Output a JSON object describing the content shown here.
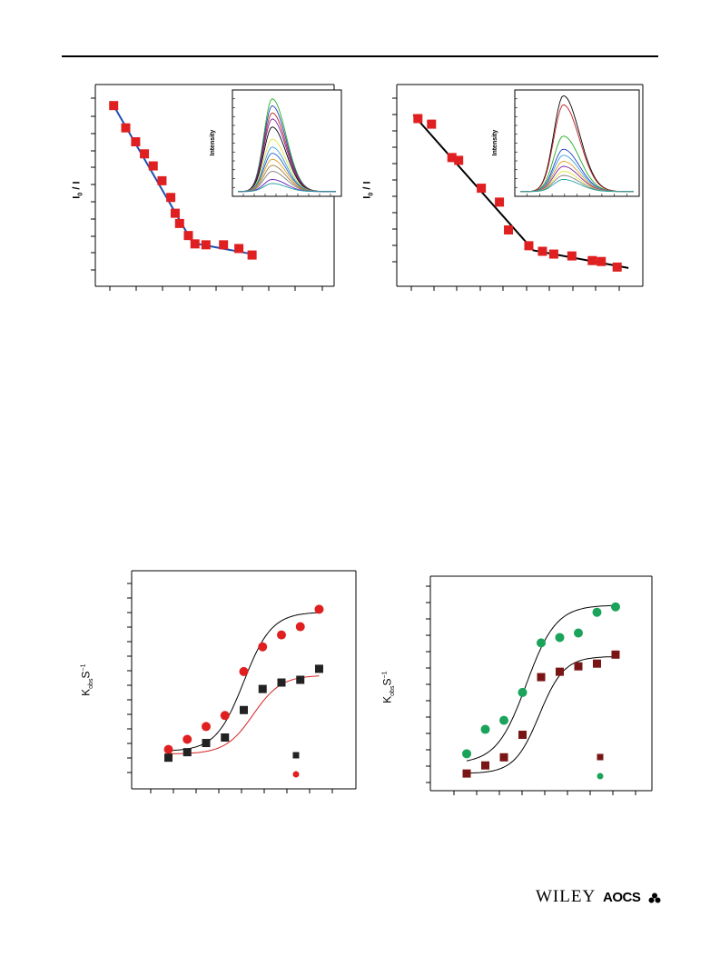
{
  "footer": {
    "publisher": "WILEY",
    "society": "AOCS"
  },
  "colors": {
    "red_marker": "#e02020",
    "blue_line": "#1f4fb0",
    "black": "#000000",
    "dark_red_marker": "#7a1515",
    "green_marker": "#1aa35a",
    "red_line": "#d42020"
  },
  "panels": [
    {
      "ylabel_main": "I",
      "ylabel_sub": "0",
      "ylabel_rest": " / I",
      "inset_ylabel": "Intensity"
    },
    {
      "ylabel_main": "I",
      "ylabel_sub": "0",
      "ylabel_rest": " / I",
      "inset_ylabel": "Intensity"
    },
    {
      "ylabel_main": "K",
      "ylabel_sub": "obs",
      "ylabel_rest": "S",
      "ylabel_sup": "−1"
    },
    {
      "ylabel_main": "K",
      "ylabel_sub": "obs",
      "ylabel_rest": "S",
      "ylabel_sup": "−1"
    }
  ],
  "chart_data": [
    {
      "type": "scatter",
      "xlabel": "",
      "ylabel": "I0 / I",
      "xlim": [
        0,
        10
      ],
      "ylim": [
        0,
        10
      ],
      "series": [
        {
          "marker": "square",
          "color": "#e02020",
          "x": [
            0.4,
            0.95,
            1.4,
            1.8,
            2.2,
            2.6,
            3.0,
            3.2,
            3.4,
            3.8,
            4.1,
            4.6,
            5.4,
            6.1,
            6.7
          ],
          "y": [
            9.3,
            8.1,
            7.35,
            6.7,
            6.05,
            5.25,
            4.35,
            3.5,
            2.95,
            2.3,
            1.85,
            1.8,
            1.8,
            1.6,
            1.25
          ]
        }
      ],
      "fit_lines": [
        {
          "color": "#1f4fb0",
          "points": [
            [
              0.3,
              9.5
            ],
            [
              4.0,
              1.9
            ],
            [
              6.7,
              1.3
            ]
          ]
        }
      ],
      "inset": {
        "type": "line",
        "ylabel": "Intensity",
        "peak_x": 0.35,
        "curves": [
          {
            "color": "#20b020",
            "peak": 0.92
          },
          {
            "color": "#2040c0",
            "peak": 0.85
          },
          {
            "color": "#c02020",
            "peak": 0.78
          },
          {
            "color": "#8020a0",
            "peak": 0.72
          },
          {
            "color": "#000000",
            "peak": 0.64
          },
          {
            "color": "#e0e040",
            "peak": 0.52
          },
          {
            "color": "#40a0e0",
            "peak": 0.44
          },
          {
            "color": "#2060c0",
            "peak": 0.38
          },
          {
            "color": "#e0a020",
            "peak": 0.32
          },
          {
            "color": "#a08040",
            "peak": 0.26
          },
          {
            "color": "#808080",
            "peak": 0.2
          },
          {
            "color": "#6020c0",
            "peak": 0.12
          },
          {
            "color": "#20a0a0",
            "peak": 0.08
          }
        ]
      }
    },
    {
      "type": "scatter",
      "xlabel": "",
      "ylabel": "I0 / I",
      "xlim": [
        0,
        10
      ],
      "ylim": [
        0,
        10
      ],
      "series": [
        {
          "marker": "square",
          "color": "#e02020",
          "x": [
            0.5,
            1.1,
            2.0,
            2.3,
            3.3,
            4.1,
            4.5,
            5.4,
            6.0,
            6.5,
            7.3,
            8.2,
            8.6,
            9.3
          ],
          "y": [
            8.6,
            8.3,
            6.5,
            6.35,
            4.85,
            4.1,
            2.6,
            1.75,
            1.45,
            1.3,
            1.2,
            0.95,
            0.9,
            0.6
          ]
        }
      ],
      "fit_lines": [
        {
          "color": "#000000",
          "points": [
            [
              0.3,
              8.8
            ],
            [
              5.6,
              1.5
            ],
            [
              9.8,
              0.55
            ]
          ]
        }
      ],
      "inset": {
        "type": "line",
        "ylabel": "Intensity",
        "peak_x": 0.38,
        "curves": [
          {
            "color": "#000000",
            "peak": 0.95
          },
          {
            "color": "#c02020",
            "peak": 0.86
          },
          {
            "color": "#20b020",
            "peak": 0.55
          },
          {
            "color": "#2040c0",
            "peak": 0.42
          },
          {
            "color": "#40a0e0",
            "peak": 0.36
          },
          {
            "color": "#e0a020",
            "peak": 0.3
          },
          {
            "color": "#8020a0",
            "peak": 0.25
          },
          {
            "color": "#e0e040",
            "peak": 0.2
          },
          {
            "color": "#808080",
            "peak": 0.16
          },
          {
            "color": "#20a0a0",
            "peak": 0.12
          }
        ]
      }
    },
    {
      "type": "scatter",
      "xlabel": "",
      "ylabel": "Kobs S−1",
      "xlim": [
        0,
        10
      ],
      "ylim": [
        0,
        10
      ],
      "series": [
        {
          "marker": "circle",
          "color": "#e02020",
          "x": [
            1,
            2,
            3,
            4,
            5,
            6,
            7,
            8,
            9
          ],
          "y": [
            1.2,
            1.75,
            2.45,
            3.05,
            5.45,
            6.8,
            7.45,
            7.9,
            8.85
          ]
        },
        {
          "marker": "square",
          "color": "#222222",
          "x": [
            1,
            2,
            3,
            4,
            5,
            6,
            7,
            8,
            9
          ],
          "y": [
            0.75,
            1.05,
            1.55,
            1.85,
            3.35,
            4.5,
            4.85,
            5.0,
            5.6
          ]
        }
      ],
      "fit_curves": [
        {
          "color": "#000000",
          "L": 7.6,
          "k": 1.35,
          "x0": 5.0,
          "base": 1.1
        },
        {
          "color": "#d42020",
          "L": 4.3,
          "k": 1.35,
          "x0": 5.5,
          "base": 0.95
        }
      ],
      "legend_markers": [
        {
          "marker": "square",
          "color": "#222222"
        },
        {
          "marker": "circle",
          "color": "#e02020"
        }
      ]
    },
    {
      "type": "scatter",
      "xlabel": "",
      "ylabel": "Kobs S−1",
      "xlim": [
        0,
        10
      ],
      "ylim": [
        0,
        10
      ],
      "series": [
        {
          "marker": "circle",
          "color": "#1aa35a",
          "x": [
            1,
            2,
            3,
            4,
            5,
            6,
            7,
            8,
            9
          ],
          "y": [
            1.1,
            2.45,
            2.95,
            4.5,
            7.25,
            7.55,
            7.8,
            8.95,
            9.25
          ]
        },
        {
          "marker": "square",
          "color": "#7a1515",
          "x": [
            1,
            2,
            3,
            4,
            5,
            6,
            7,
            8,
            9
          ],
          "y": [
            0.0,
            0.45,
            0.9,
            2.15,
            5.35,
            5.65,
            5.95,
            6.1,
            6.6
          ]
        }
      ],
      "fit_curves": [
        {
          "color": "#000000",
          "L": 8.8,
          "k": 1.25,
          "x0": 4.2,
          "base": 0.55
        },
        {
          "color": "#000000",
          "L": 6.5,
          "k": 1.5,
          "x0": 4.9,
          "base": 0.0
        }
      ],
      "legend_markers": [
        {
          "marker": "square",
          "color": "#7a1515"
        },
        {
          "marker": "circle",
          "color": "#1aa35a"
        }
      ]
    }
  ]
}
